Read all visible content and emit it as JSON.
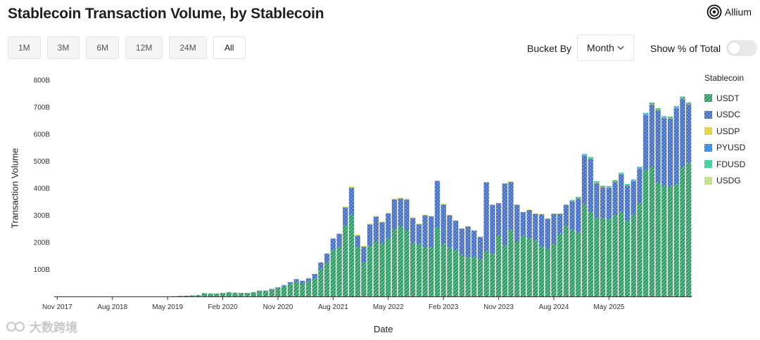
{
  "header": {
    "title": "Stablecoin Transaction Volume, by Stablecoin",
    "brand": "Allium"
  },
  "ranges": [
    {
      "label": "1M",
      "active": false
    },
    {
      "label": "3M",
      "active": false
    },
    {
      "label": "6M",
      "active": false
    },
    {
      "label": "12M",
      "active": false
    },
    {
      "label": "24M",
      "active": false
    },
    {
      "label": "All",
      "active": true
    }
  ],
  "controls": {
    "bucket_label": "Bucket By",
    "bucket_value": "Month",
    "show_pct_label": "Show % of Total",
    "show_pct_on": false
  },
  "watermark": "大数跨境",
  "chart_data": {
    "type": "bar",
    "stacked": true,
    "xlabel": "Date",
    "ylabel": "Transaction Volume",
    "ylim": [
      0,
      800
    ],
    "y_unit": "B",
    "yticks": [
      "100B",
      "200B",
      "300B",
      "400B",
      "500B",
      "600B",
      "700B",
      "800B"
    ],
    "xticks": [
      "Nov 2017",
      "Aug 2018",
      "May 2019",
      "Feb 2020",
      "Nov 2020",
      "Aug 2021",
      "May 2022",
      "Feb 2023",
      "Nov 2023",
      "Aug 2024",
      "May 2025"
    ],
    "x_start": "Nov 2017",
    "grid": false,
    "legend_title": "Stablecoin",
    "legend_position": "right",
    "series": [
      {
        "name": "USDT",
        "color": "#2e9b64",
        "values": [
          0,
          0,
          0,
          0,
          0,
          0,
          0,
          0,
          0,
          0,
          0,
          0,
          0,
          0,
          0,
          0,
          0,
          0,
          0,
          1,
          2,
          3,
          4,
          5,
          12,
          11,
          11,
          13,
          16,
          14,
          13,
          13,
          15,
          20,
          20,
          25,
          30,
          37,
          46,
          55,
          48,
          55,
          67,
          102,
          127,
          172,
          182,
          262,
          302,
          182,
          125,
          186,
          204,
          197,
          216,
          249,
          261,
          244,
          198,
          194,
          183,
          183,
          255,
          194,
          180,
          174,
          154,
          145,
          147,
          138,
          167,
          158,
          224,
          188,
          247,
          204,
          226,
          215,
          208,
          186,
          178,
          192,
          232,
          262,
          247,
          237,
          341,
          313,
          291,
          289,
          286,
          301,
          312,
          281,
          302,
          345,
          469,
          478,
          421,
          409,
          408,
          415,
          478,
          493
        ]
      },
      {
        "name": "USDC",
        "color": "#4b73c4",
        "values": [
          0,
          0,
          0,
          0,
          0,
          0,
          0,
          0,
          0,
          0,
          0,
          0,
          0,
          0,
          0,
          0,
          0,
          0,
          0,
          0,
          0,
          0,
          0,
          0,
          0,
          0,
          0,
          0,
          0,
          0,
          0,
          0,
          1,
          2,
          2,
          3,
          4,
          5,
          7,
          9,
          10,
          12,
          16,
          24,
          32,
          42,
          50,
          67,
          100,
          43,
          59,
          80,
          91,
          77,
          91,
          110,
          101,
          114,
          92,
          73,
          117,
          113,
          172,
          146,
          120,
          106,
          97,
          114,
          97,
          82,
          255,
          181,
          121,
          230,
          177,
          135,
          86,
          105,
          98,
          118,
          110,
          114,
          73,
          76,
          105,
          126,
          180,
          196,
          128,
          115,
          116,
          124,
          140,
          129,
          125,
          128,
          203,
          232,
          268,
          251,
          250,
          282,
          254,
          218
        ]
      },
      {
        "name": "USDP",
        "color": "#e3d22f",
        "values": [
          0,
          0,
          0,
          0,
          0,
          0,
          0,
          0,
          0,
          0,
          0,
          0,
          0,
          0,
          0,
          0,
          0,
          0,
          0,
          0,
          0,
          0,
          0,
          0,
          0,
          0,
          0,
          0,
          0,
          0,
          0,
          0,
          0,
          0,
          0,
          0,
          0,
          0,
          0,
          0,
          0,
          0,
          0,
          0,
          0,
          0,
          0,
          3,
          4,
          3,
          3,
          3,
          3,
          3,
          3,
          3,
          3,
          3,
          2,
          2,
          2,
          2,
          2,
          2,
          2,
          2,
          1,
          1,
          1,
          1,
          1,
          1,
          1,
          1,
          1,
          1,
          1,
          1,
          1,
          1,
          1,
          1,
          1,
          1,
          1,
          1,
          1,
          1,
          1,
          1,
          1,
          1,
          1,
          1,
          1,
          1,
          1,
          1,
          1,
          1,
          1,
          1,
          1,
          1
        ]
      },
      {
        "name": "PYUSD",
        "color": "#2f8ee8",
        "values": [
          0,
          0,
          0,
          0,
          0,
          0,
          0,
          0,
          0,
          0,
          0,
          0,
          0,
          0,
          0,
          0,
          0,
          0,
          0,
          0,
          0,
          0,
          0,
          0,
          0,
          0,
          0,
          0,
          0,
          0,
          0,
          0,
          0,
          0,
          0,
          0,
          0,
          0,
          0,
          0,
          0,
          0,
          0,
          0,
          0,
          0,
          0,
          0,
          0,
          0,
          0,
          0,
          0,
          0,
          0,
          0,
          0,
          0,
          0,
          0,
          0,
          0,
          0,
          0,
          0,
          0,
          0,
          0,
          0,
          0,
          0,
          0,
          0,
          0,
          0,
          0,
          0,
          0,
          0,
          0,
          0,
          0,
          1,
          1,
          1,
          1,
          2,
          2,
          2,
          2,
          2,
          2,
          2,
          2,
          2,
          3,
          3,
          3,
          3,
          3,
          3,
          3,
          3,
          3
        ]
      },
      {
        "name": "FDUSD",
        "color": "#35d296",
        "values": [
          0,
          0,
          0,
          0,
          0,
          0,
          0,
          0,
          0,
          0,
          0,
          0,
          0,
          0,
          0,
          0,
          0,
          0,
          0,
          0,
          0,
          0,
          0,
          0,
          0,
          0,
          0,
          0,
          0,
          0,
          0,
          0,
          0,
          0,
          0,
          0,
          0,
          0,
          0,
          0,
          0,
          0,
          0,
          0,
          0,
          0,
          0,
          0,
          0,
          0,
          0,
          0,
          0,
          0,
          0,
          0,
          0,
          0,
          0,
          0,
          0,
          0,
          0,
          0,
          0,
          0,
          0,
          0,
          0,
          0,
          0,
          0,
          0,
          0,
          0,
          0,
          0,
          0,
          0,
          0,
          0,
          0,
          0,
          0,
          3,
          3,
          3,
          4,
          4,
          3,
          3,
          3,
          3,
          3,
          3,
          3,
          3,
          3,
          3,
          3,
          3,
          3,
          3,
          3
        ]
      },
      {
        "name": "USDG",
        "color": "#b9e07a",
        "values": [
          0,
          0,
          0,
          0,
          0,
          0,
          0,
          0,
          0,
          0,
          0,
          0,
          0,
          0,
          0,
          0,
          0,
          0,
          0,
          0,
          0,
          0,
          0,
          0,
          0,
          0,
          0,
          0,
          0,
          0,
          0,
          0,
          0,
          0,
          0,
          0,
          0,
          0,
          0,
          0,
          0,
          0,
          0,
          0,
          0,
          0,
          0,
          0,
          0,
          0,
          0,
          0,
          0,
          0,
          0,
          0,
          0,
          0,
          0,
          0,
          0,
          0,
          0,
          0,
          0,
          0,
          0,
          0,
          0,
          0,
          0,
          0,
          0,
          0,
          0,
          0,
          0,
          0,
          0,
          0,
          0,
          0,
          0,
          0,
          0,
          0,
          0,
          0,
          0,
          0,
          0,
          0,
          0,
          0,
          0,
          0,
          0,
          0,
          0,
          0,
          1,
          1,
          1,
          1
        ]
      }
    ]
  }
}
